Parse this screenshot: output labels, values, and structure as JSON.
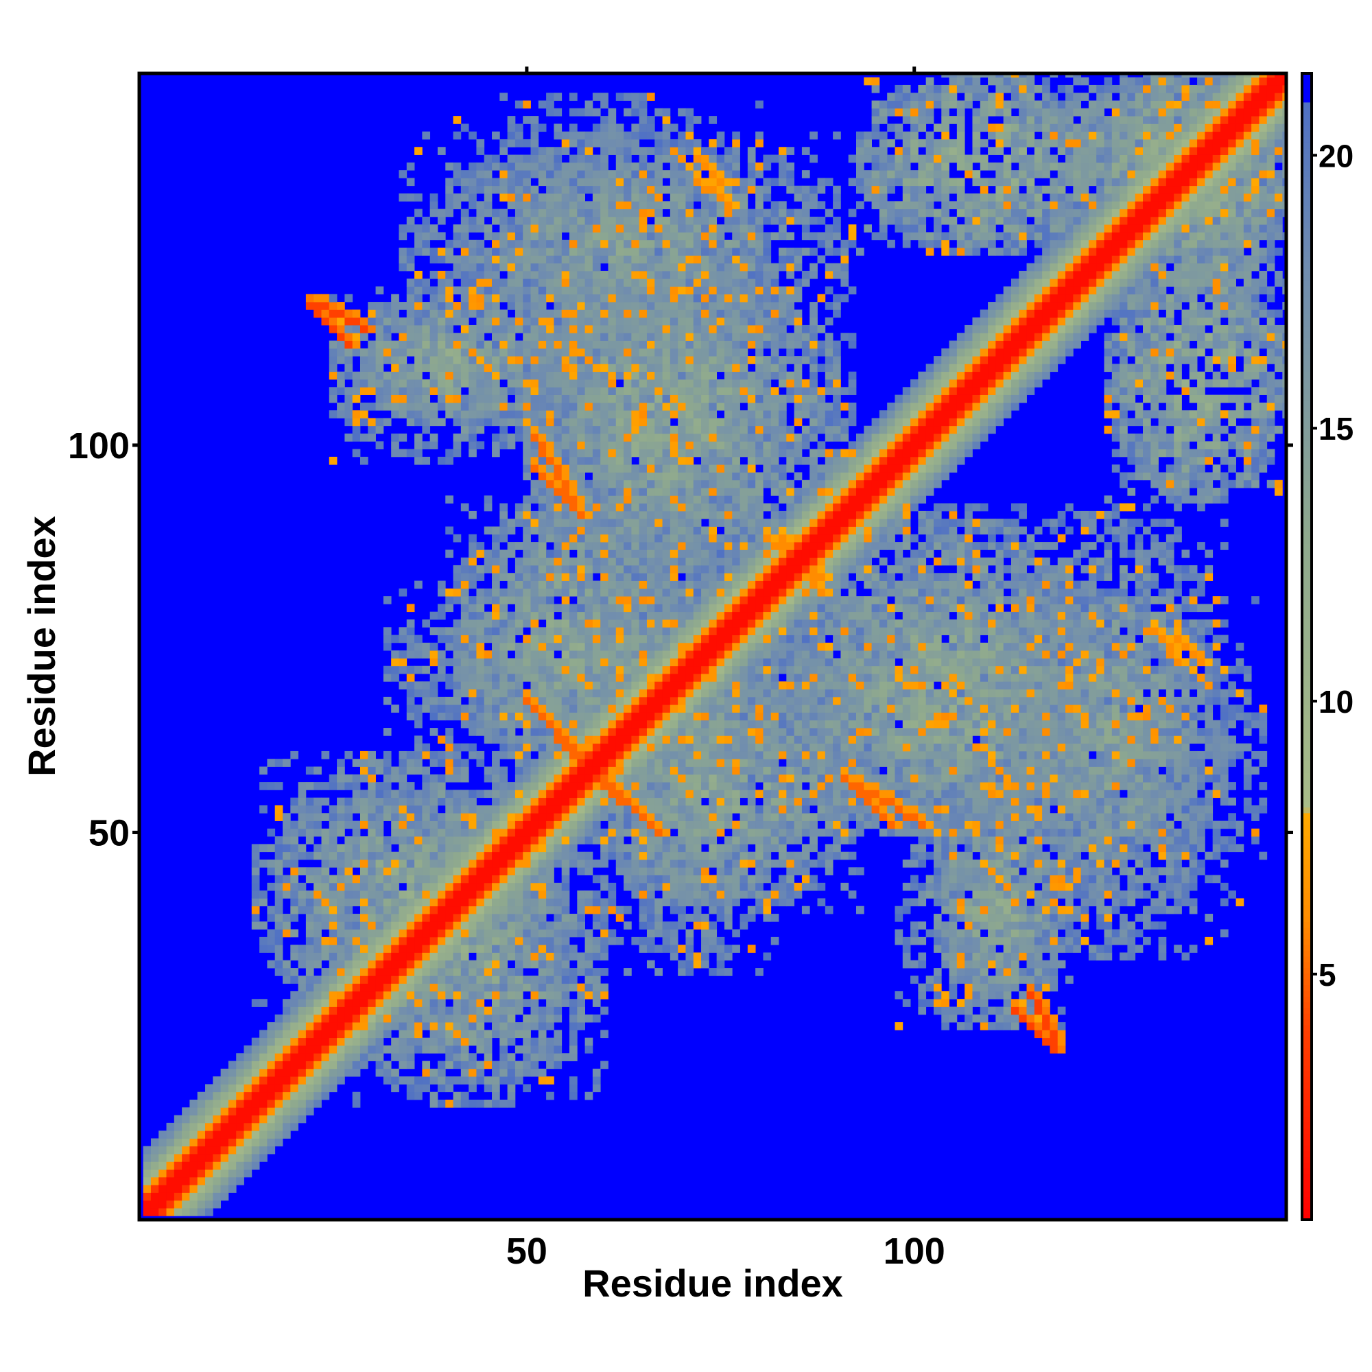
{
  "chart_data": {
    "type": "heatmap",
    "title": "",
    "xlabel": "Residue index",
    "ylabel": "Residue index",
    "n_residues": 148,
    "xlim": [
      1,
      148
    ],
    "ylim": [
      1,
      148
    ],
    "x_ticks": [
      50,
      100
    ],
    "y_ticks": [
      50,
      100
    ],
    "value_description": "pairwise distance, color-coded",
    "colorbar": {
      "ticks": [
        5,
        10,
        15,
        20
      ],
      "range": [
        0.5,
        21.5
      ],
      "stops": [
        {
          "value": 0.5,
          "color": "#ff0000"
        },
        {
          "value": 4.0,
          "color": "#ff4000"
        },
        {
          "value": 6.0,
          "color": "#ff8c00"
        },
        {
          "value": 8.0,
          "color": "#ffaa00"
        },
        {
          "value": 8.01,
          "color": "#a8bc88"
        },
        {
          "value": 13.0,
          "color": "#8fa98e"
        },
        {
          "value": 18.0,
          "color": "#6f8cb0"
        },
        {
          "value": 21.5,
          "color": "#4a6cc8"
        }
      ],
      "cutoff_value": 21.0,
      "cutoff_color": "#0000ff"
    },
    "diagonal_band_width": 8,
    "contact_regions": [
      {
        "x": [
          125,
          148
        ],
        "y": [
          120,
          148
        ],
        "level": 13
      },
      {
        "x": [
          93,
          125
        ],
        "y": [
          125,
          148
        ],
        "level": 13
      },
      {
        "x": [
          34,
          92
        ],
        "y": [
          113,
          140
        ],
        "level": 15
      },
      {
        "x": [
          50,
          92
        ],
        "y": [
          86,
          122
        ],
        "level": 14
      },
      {
        "x": [
          25,
          55
        ],
        "y": [
          103,
          120
        ],
        "level": 14
      },
      {
        "x": [
          80,
          125
        ],
        "y": [
          50,
          82
        ],
        "level": 14
      },
      {
        "x": [
          58,
          93
        ],
        "y": [
          40,
          70
        ],
        "level": 14
      },
      {
        "x": [
          32,
          92
        ],
        "y": [
          58,
          83
        ],
        "level": 15
      },
      {
        "x": [
          105,
          145
        ],
        "y": [
          40,
          80
        ],
        "level": 16
      },
      {
        "x": [
          98,
          118
        ],
        "y": [
          25,
          55
        ],
        "level": 15
      },
      {
        "x": [
          15,
          55
        ],
        "y": [
          25,
          60
        ],
        "level": 14
      }
    ],
    "close_contacts": [
      {
        "x": [
          23,
          29
        ],
        "y": [
          115,
          118
        ],
        "level": 4
      },
      {
        "x": [
          51,
          56
        ],
        "y": [
          93,
          101
        ],
        "level": 5
      },
      {
        "x": [
          51,
          56
        ],
        "y": [
          60,
          66
        ],
        "level": 5
      },
      {
        "x": [
          59,
          67
        ],
        "y": [
          50,
          58
        ],
        "level": 5
      },
      {
        "x": [
          91,
          97
        ],
        "y": [
          51,
          57
        ],
        "level": 5
      },
      {
        "x": [
          113,
          118
        ],
        "y": [
          22,
          27
        ],
        "level": 4
      },
      {
        "x": [
          72,
          75
        ],
        "y": [
          134,
          137
        ],
        "level": 6
      },
      {
        "x": [
          131,
          134
        ],
        "y": [
          72,
          76
        ],
        "level": 6
      },
      {
        "x": [
          83,
          88
        ],
        "y": [
          81,
          88
        ],
        "level": 6
      }
    ]
  }
}
